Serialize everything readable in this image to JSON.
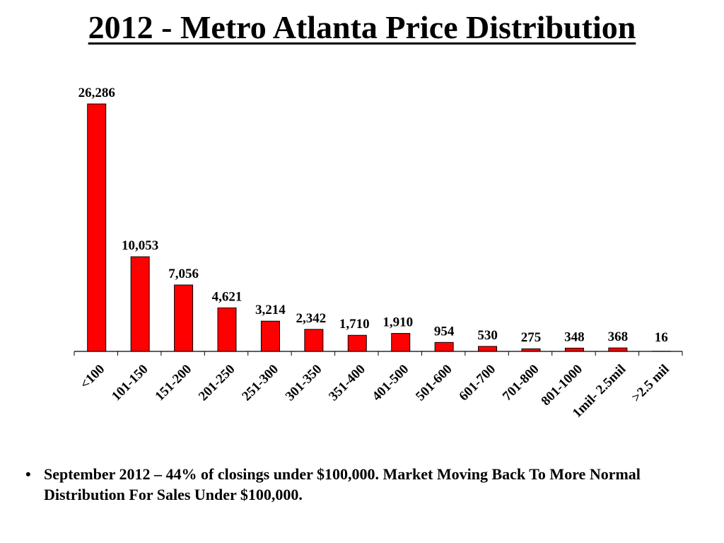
{
  "title": "2012 - Metro Atlanta Price Distribution",
  "note": {
    "bullet": "•",
    "text": "September 2012 – 44% of closings under $100,000.  Market Moving Back To More Normal Distribution For Sales Under $100,000."
  },
  "colors": {
    "bar": "#ff0000",
    "bar_stroke": "#000000"
  },
  "chart_data": {
    "type": "bar",
    "categories": [
      "<100",
      "101-150",
      "151-200",
      "201-250",
      "251-300",
      "301-350",
      "351-400",
      "401-500",
      "501-600",
      "601-700",
      "701-800",
      "801-1000",
      "1mil- 2.5mil",
      ">2.5 mil"
    ],
    "values": [
      26286,
      10053,
      7056,
      4621,
      3214,
      2342,
      1710,
      1910,
      954,
      530,
      275,
      348,
      368,
      16
    ],
    "data_labels": [
      "26,286",
      "10,053",
      "7,056",
      "4,621",
      "3,214",
      "2,342",
      "1,710",
      "1,910",
      "954",
      "530",
      "275",
      "348",
      "368",
      "16"
    ],
    "xlabel": "",
    "ylabel": "",
    "ylim": [
      0,
      26286
    ],
    "grid": false,
    "legend": "none",
    "x_tick_rotation": -45
  }
}
